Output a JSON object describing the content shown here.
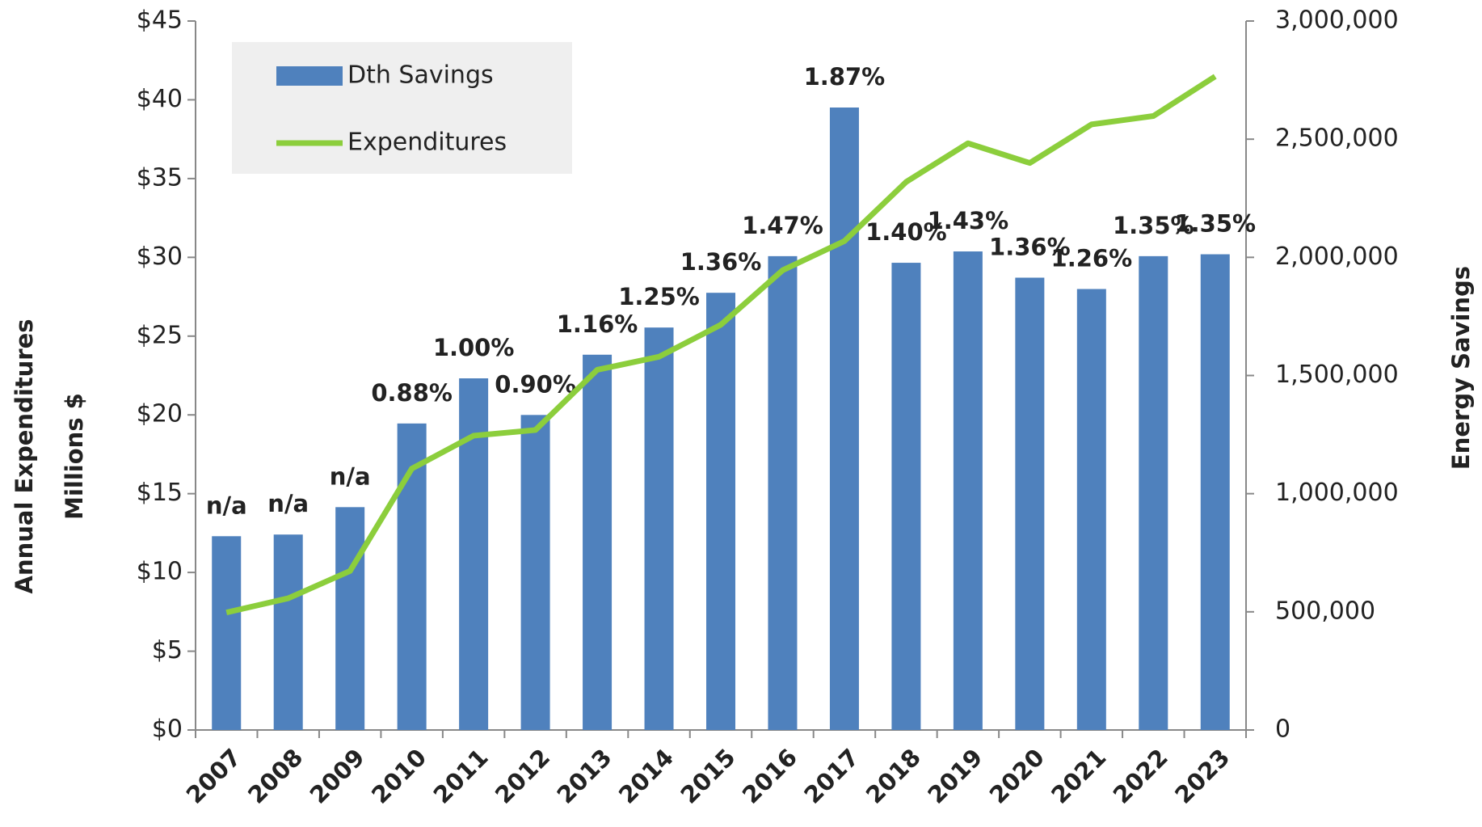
{
  "chart_data": {
    "type": "bar_line",
    "y_label_lines": [
      "Annual Expenditures",
      "Millions  $"
    ],
    "y2_label": "Energy Savings",
    "categories": [
      "2007",
      "2008",
      "2009",
      "2010",
      "2011",
      "2012",
      "2013",
      "2014",
      "2015",
      "2016",
      "2017",
      "2018",
      "2019",
      "2020",
      "2021",
      "2022",
      "2023"
    ],
    "series": [
      {
        "name": "Dth Savings",
        "type": "bar",
        "axis": "y2",
        "color": "#4f81bd",
        "values": [
          820000,
          827000,
          943000,
          1297000,
          1488000,
          1333000,
          1588000,
          1703000,
          1850000,
          2005000,
          2634000,
          1977000,
          2025000,
          1914000,
          1866000,
          2005000,
          2013000
        ]
      },
      {
        "name": "Expenditures",
        "type": "line",
        "axis": "y",
        "color": "#8cce3c",
        "values": [
          7.46,
          8.36,
          10.09,
          16.59,
          18.68,
          19.04,
          22.86,
          23.69,
          25.72,
          29.18,
          31.03,
          34.79,
          37.24,
          35.99,
          38.44,
          38.97,
          41.48
        ]
      }
    ],
    "annotations": [
      "n/a",
      "n/a",
      "n/a",
      "0.88%",
      "1.00%",
      "0.90%",
      "1.16%",
      "1.25%",
      "1.36%",
      "1.47%",
      "1.87%",
      "1.40%",
      "1.43%",
      "1.36%",
      "1.26%",
      "1.35%",
      "1.35%"
    ],
    "ylim": [
      0,
      45
    ],
    "yticks": [
      {
        "value": 0,
        "label": "$0"
      },
      {
        "value": 5,
        "label": "$5"
      },
      {
        "value": 10,
        "label": "$10"
      },
      {
        "value": 15,
        "label": "$15"
      },
      {
        "value": 20,
        "label": "$20"
      },
      {
        "value": 25,
        "label": "$25"
      },
      {
        "value": 30,
        "label": "$30"
      },
      {
        "value": 35,
        "label": "$35"
      },
      {
        "value": 40,
        "label": "$40"
      },
      {
        "value": 45,
        "label": "$45"
      }
    ],
    "y2lim": [
      0,
      3000000
    ],
    "y2ticks": [
      0,
      {
        "value": 500000,
        "label": "500,000"
      },
      {
        "value": 1000000,
        "label": "1,000,000"
      },
      {
        "value": 1500000,
        "label": "1,500,000"
      },
      {
        "value": 2000000,
        "label": "2,000,000"
      },
      {
        "value": 2500000,
        "label": "2,500,000"
      },
      {
        "value": 3000000,
        "label": "3,000,000"
      }
    ],
    "legend": "top-left"
  }
}
